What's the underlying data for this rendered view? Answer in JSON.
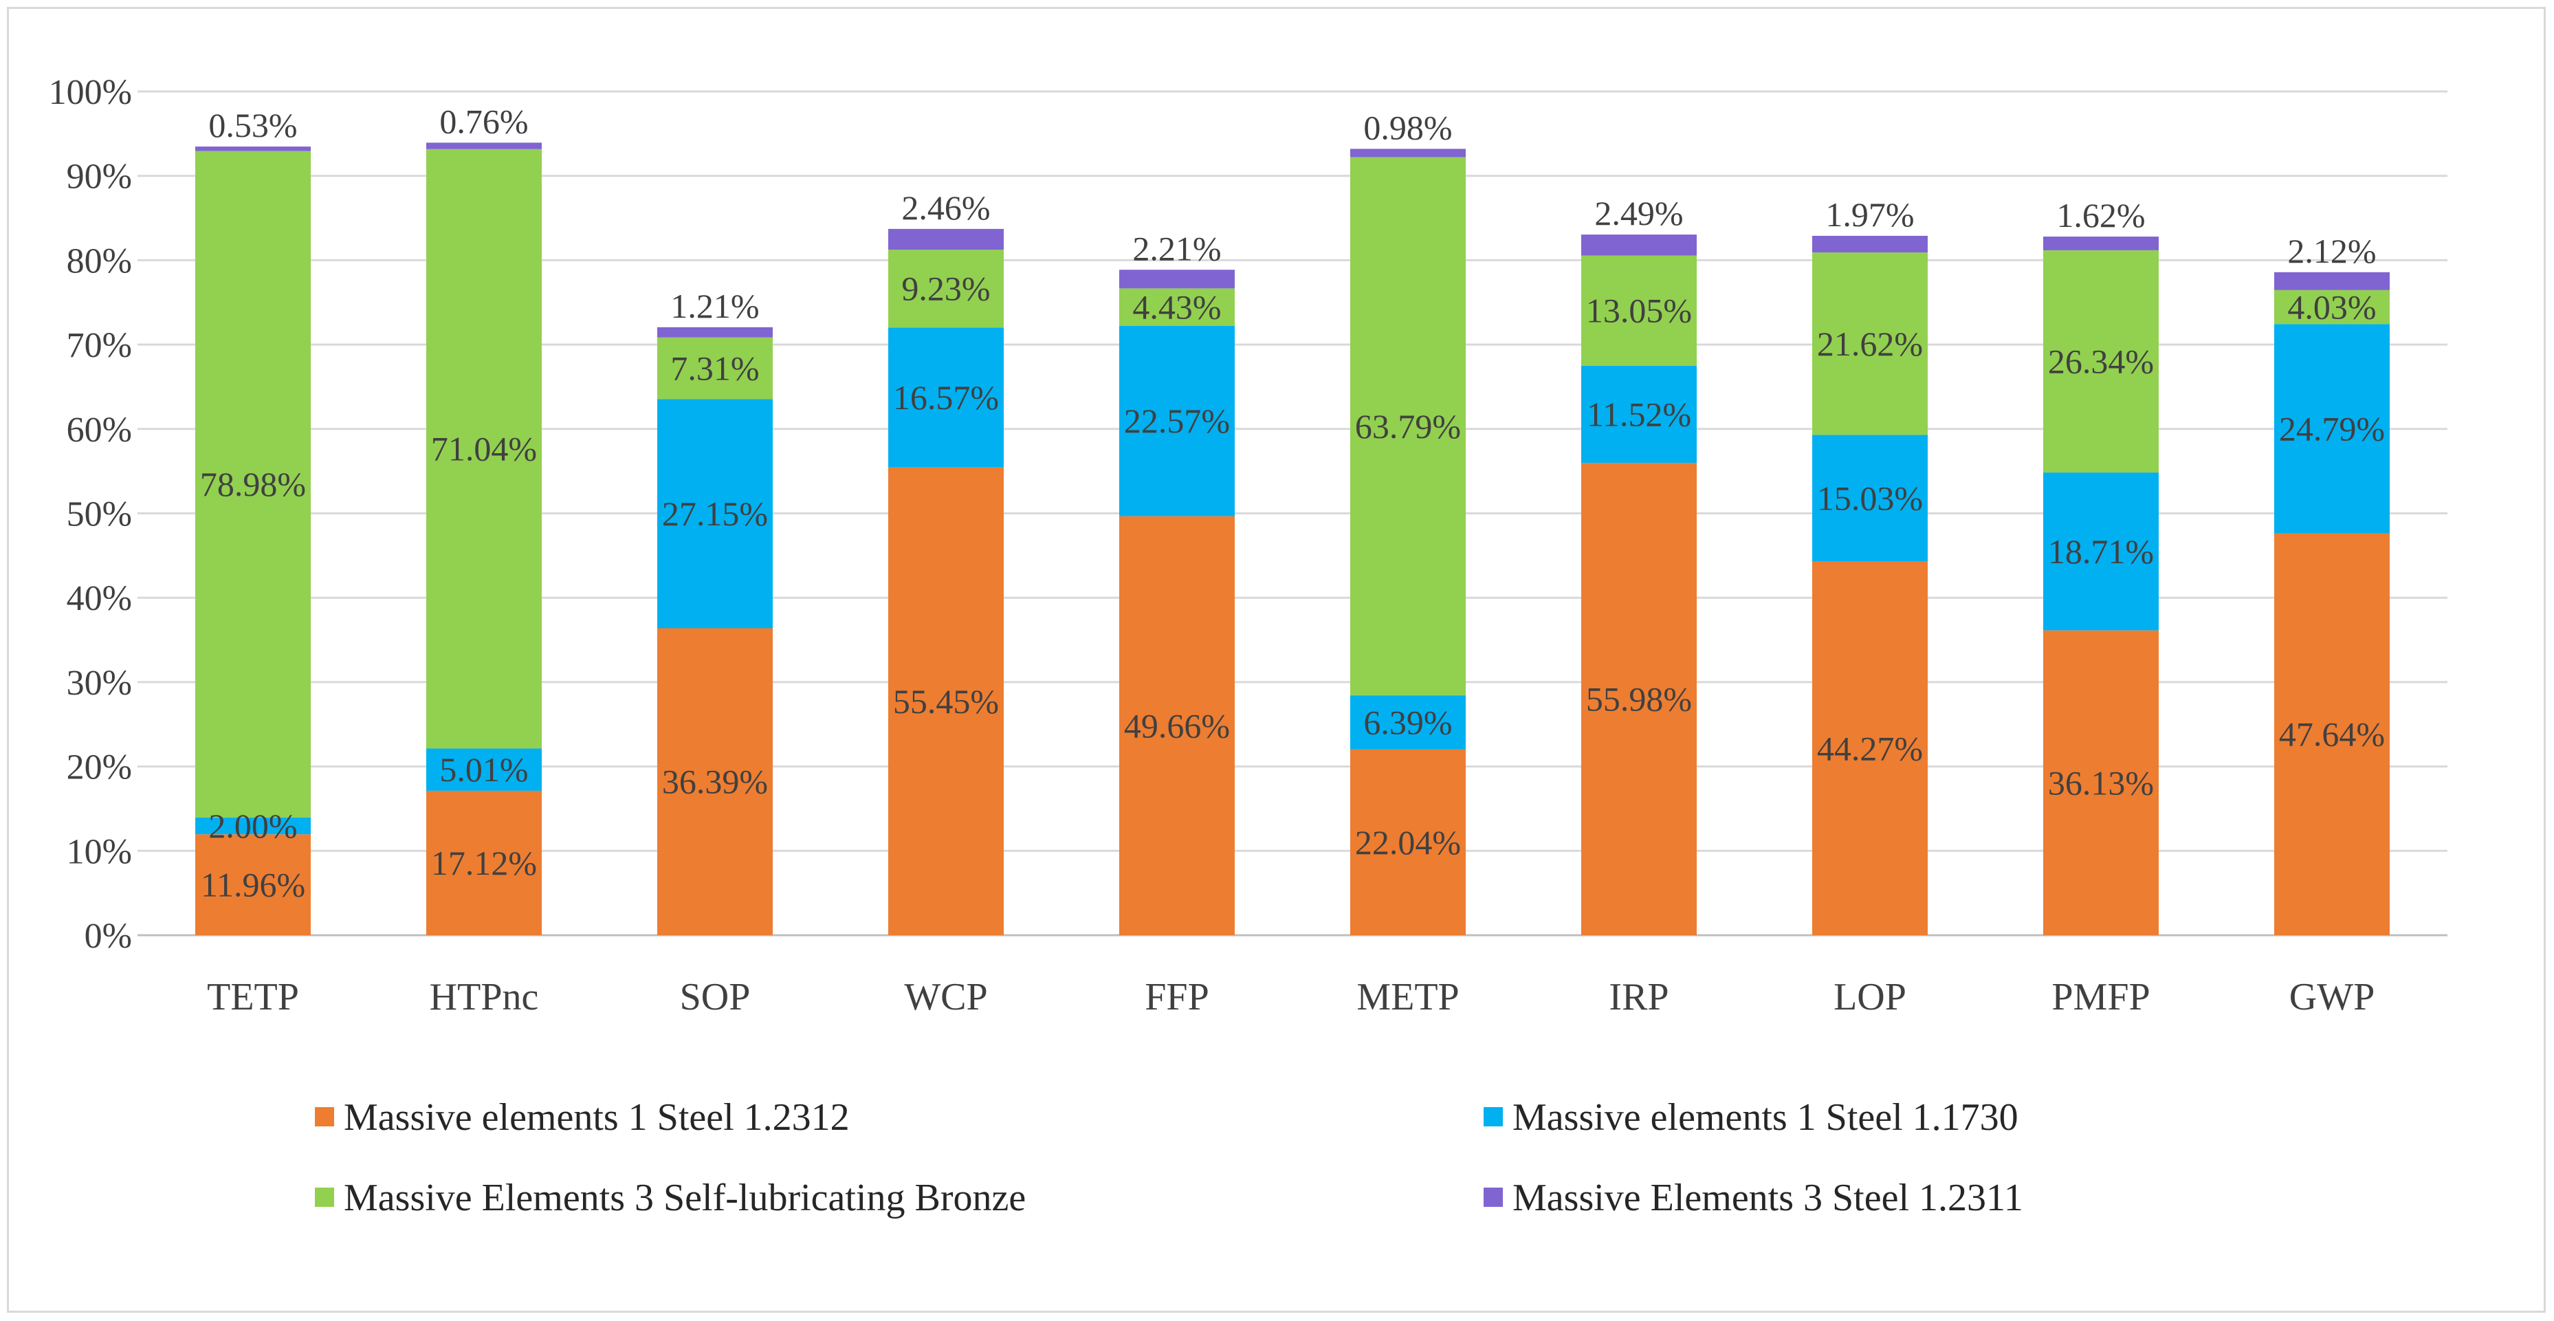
{
  "chart_data": {
    "type": "bar",
    "stacked": true,
    "percent": true,
    "title": "",
    "xlabel": "",
    "ylabel": "",
    "ylim": [
      0,
      100
    ],
    "yticks": [
      "0%",
      "10%",
      "20%",
      "30%",
      "40%",
      "50%",
      "60%",
      "70%",
      "80%",
      "90%",
      "100%"
    ],
    "grid": true,
    "legend_position": "bottom",
    "categories": [
      "TETP",
      "HTPnc",
      "SOP",
      "WCP",
      "FFP",
      "METP",
      "IRP",
      "LOP",
      "PMFP",
      "GWP"
    ],
    "series": [
      {
        "name": "Massive elements 1  Steel 1.2312",
        "color": "#ed7d31",
        "values": [
          11.96,
          17.12,
          36.39,
          55.45,
          49.66,
          22.04,
          55.98,
          44.27,
          36.13,
          47.64
        ],
        "labels": [
          "11.96%",
          "17.12%",
          "36.39%",
          "55.45%",
          "49.66%",
          "22.04%",
          "55.98%",
          "44.27%",
          "36.13%",
          "47.64%"
        ]
      },
      {
        "name": "Massive elements 1  Steel 1.1730",
        "color": "#00b0f0",
        "values": [
          2.0,
          5.01,
          27.15,
          16.57,
          22.57,
          6.39,
          11.52,
          15.03,
          18.71,
          24.79
        ],
        "labels": [
          "2.00%",
          "5.01%",
          "27.15%",
          "16.57%",
          "22.57%",
          "6.39%",
          "11.52%",
          "15.03%",
          "18.71%",
          "24.79%"
        ]
      },
      {
        "name": "Massive Elements 3 Self-lubricating Bronze",
        "color": "#92d050",
        "values": [
          78.98,
          71.04,
          7.31,
          9.23,
          4.43,
          63.79,
          13.05,
          21.62,
          26.34,
          4.03
        ],
        "labels": [
          "78.98%",
          "71.04%",
          "7.31%",
          "9.23%",
          "4.43%",
          "63.79%",
          "13.05%",
          "21.62%",
          "26.34%",
          "4.03%"
        ]
      },
      {
        "name": "Massive Elements 3 Steel 1.2311",
        "color": "#8064d2",
        "values": [
          0.53,
          0.76,
          1.21,
          2.46,
          2.21,
          0.98,
          2.49,
          1.97,
          1.62,
          2.12
        ],
        "labels": [
          "0.53%",
          "0.76%",
          "1.21%",
          "2.46%",
          "2.21%",
          "0.98%",
          "2.49%",
          "1.97%",
          "1.62%",
          "2.12%"
        ]
      }
    ]
  }
}
